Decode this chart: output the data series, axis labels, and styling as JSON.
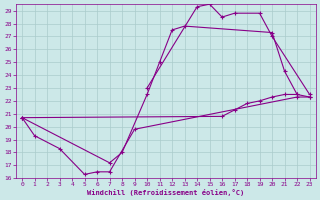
{
  "xlabel": "Windchill (Refroidissement éolien,°C)",
  "bg_color": "#cce8e8",
  "grid_color": "#aacccc",
  "line_color": "#880088",
  "xlim": [
    -0.5,
    23.5
  ],
  "ylim": [
    16,
    29.5
  ],
  "xticks": [
    0,
    1,
    2,
    3,
    4,
    5,
    6,
    7,
    8,
    9,
    10,
    11,
    12,
    13,
    14,
    15,
    16,
    17,
    18,
    19,
    20,
    21,
    22,
    23
  ],
  "yticks": [
    16,
    17,
    18,
    19,
    20,
    21,
    22,
    23,
    24,
    25,
    26,
    27,
    28,
    29
  ],
  "series": [
    {
      "comment": "bottom zigzag line: 0->1->3->5->6->7->9->22->23",
      "x": [
        0,
        1,
        3,
        5,
        6,
        7,
        9,
        22,
        23
      ],
      "y": [
        20.7,
        19.3,
        18.3,
        16.3,
        16.5,
        16.5,
        19.8,
        22.3,
        22.3
      ]
    },
    {
      "x": [
        0,
        7,
        8,
        10,
        11,
        12,
        13,
        20,
        21,
        22
      ],
      "y": [
        20.7,
        17.2,
        18.0,
        22.5,
        25.0,
        27.5,
        27.8,
        27.3,
        24.3,
        22.5
      ]
    },
    {
      "x": [
        10,
        14,
        15,
        16,
        17,
        19,
        20,
        23
      ],
      "y": [
        23.0,
        29.3,
        29.5,
        28.5,
        28.8,
        28.8,
        27.0,
        22.5
      ]
    },
    {
      "x": [
        0,
        16,
        17,
        18,
        19,
        20,
        21,
        22,
        23
      ],
      "y": [
        20.7,
        20.8,
        21.3,
        21.8,
        22.0,
        22.3,
        22.5,
        22.5,
        22.3
      ]
    }
  ]
}
